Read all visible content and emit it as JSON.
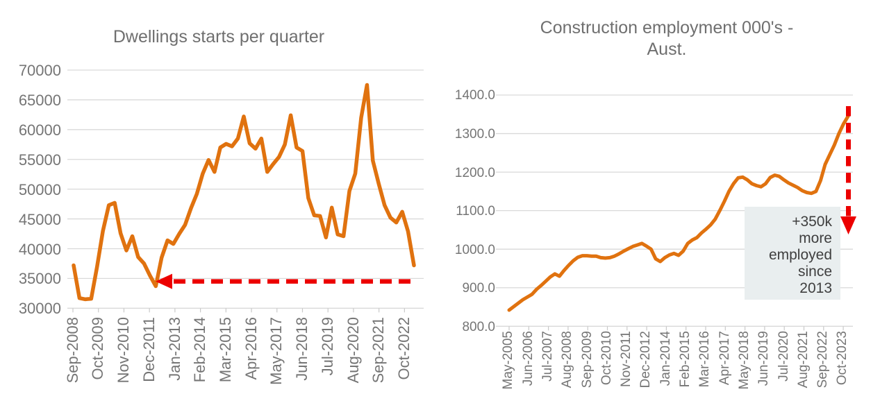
{
  "chart_data": [
    {
      "type": "line",
      "title": "Dwellings starts per quarter",
      "xlabel": "",
      "ylabel": "",
      "ylim": [
        30000,
        70000
      ],
      "grid": true,
      "legend": "none",
      "line_color": "#e0720f",
      "y_tick_labels": [
        "70000",
        "65000",
        "60000",
        "55000",
        "50000",
        "45000",
        "40000",
        "35000",
        "30000"
      ],
      "x_labels": [
        "Sep-2008",
        "Oct-2009",
        "Nov-2010",
        "Dec-2011",
        "Jan-2013",
        "Feb-2014",
        "Mar-2015",
        "Apr-2016",
        "May-2017",
        "Jun-2018",
        "Jul-2019",
        "Aug-2020",
        "Sep-2021",
        "Oct-2022"
      ],
      "x_axis_note": "quarterly series Sep-2008 to Mar-2023, tick labels every 13 months",
      "values": [
        37200,
        31700,
        31500,
        31600,
        37000,
        43000,
        47300,
        47700,
        42600,
        39700,
        42100,
        38600,
        37500,
        35500,
        33700,
        38500,
        41400,
        40800,
        42500,
        44000,
        46800,
        49200,
        52600,
        54900,
        52900,
        57000,
        57600,
        57200,
        58500,
        62200,
        57700,
        56800,
        58500,
        52900,
        54200,
        55400,
        57500,
        62400,
        57000,
        56400,
        48500,
        45600,
        45500,
        41900,
        46900,
        42400,
        42100,
        49700,
        52600,
        62000,
        67500,
        54800,
        50900,
        47300,
        45200,
        44400,
        46200,
        42900,
        37200
      ],
      "annotation": {
        "shape": "dashed-horizontal-arrow-left",
        "color": "#ec0000",
        "at_value": 34500,
        "meaning": "points left to the Mar-2012 trough"
      }
    },
    {
      "type": "line",
      "title": "Construction employment 000's - Aust.",
      "title_lines": [
        "Construction employment 000's -",
        "Aust."
      ],
      "xlabel": "",
      "ylabel": "",
      "ylim": [
        800,
        1400
      ],
      "grid": true,
      "legend": "none",
      "line_color": "#e0720f",
      "y_tick_labels": [
        "1400.0",
        "1300.0",
        "1200.0",
        "1100.0",
        "1000.0",
        "900.0",
        "800.0"
      ],
      "x_labels": [
        "May-2005",
        "Jun-2006",
        "Jul-2007",
        "Aug-2008",
        "Sep-2009",
        "Oct-2010",
        "Nov-2011",
        "Dec-2012",
        "Jan-2014",
        "Feb-2015",
        "Mar-2016",
        "Apr-2017",
        "May-2018",
        "Jun-2019",
        "Jul-2020",
        "Aug-2021",
        "Sep-2022",
        "Oct-2023"
      ],
      "x_axis_note": "quarterly series May-2005 to Nov-2023, tick labels every 13 months",
      "values": [
        842,
        851,
        860,
        869,
        876,
        883,
        896,
        906,
        917,
        928,
        936,
        930,
        945,
        958,
        970,
        979,
        983,
        983,
        982,
        982,
        978,
        977,
        978,
        982,
        988,
        995,
        1001,
        1007,
        1011,
        1015,
        1008,
        1000,
        975,
        968,
        978,
        985,
        989,
        984,
        995,
        1015,
        1024,
        1030,
        1042,
        1052,
        1063,
        1078,
        1100,
        1124,
        1150,
        1170,
        1185,
        1187,
        1180,
        1170,
        1165,
        1162,
        1170,
        1186,
        1192,
        1189,
        1180,
        1172,
        1166,
        1160,
        1152,
        1147,
        1145,
        1150,
        1178,
        1220,
        1245,
        1270,
        1300,
        1325,
        1345
      ],
      "annotation": {
        "shape": "dashed-vertical-arrow-down",
        "color": "#ec0000",
        "from_value": 1360,
        "to_value": 1055
      },
      "callout": {
        "text": "+350k more employed since 2013",
        "lines": [
          "+350k",
          "more",
          "employed",
          "since",
          "2013"
        ],
        "bg": "#e9eeef",
        "text_color": "#3f3f3f"
      }
    }
  ]
}
